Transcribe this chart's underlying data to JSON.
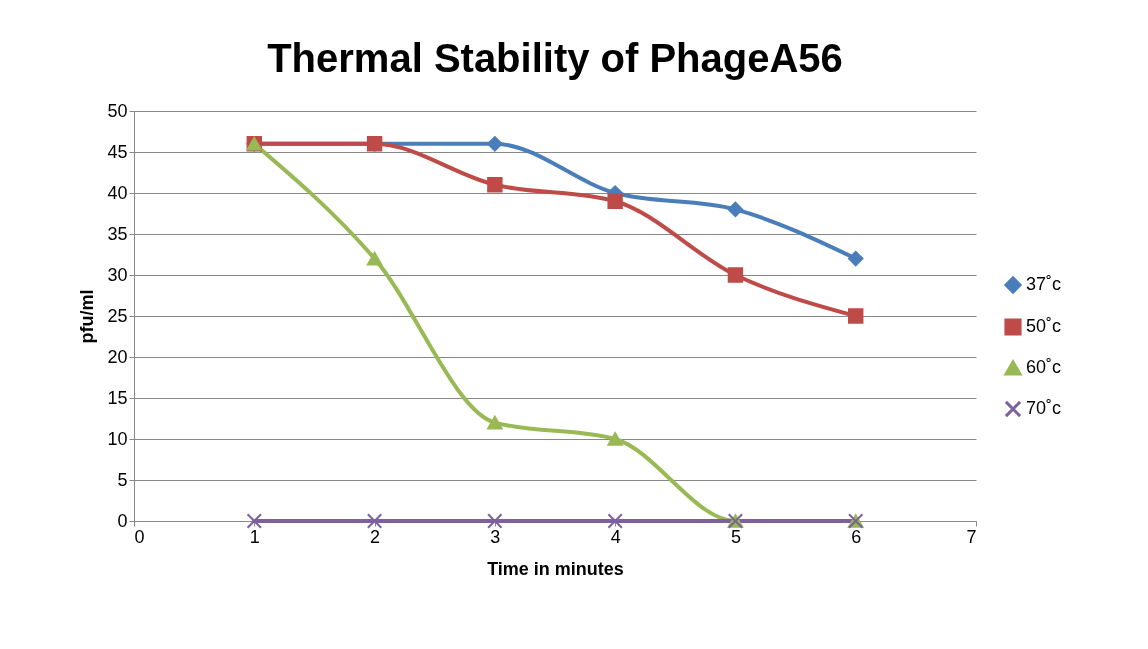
{
  "chart_data": {
    "type": "line",
    "title": "Thermal Stability of PhageA56",
    "xlabel": "Time in minutes",
    "ylabel": "pfu/ml",
    "x": [
      1,
      2,
      3,
      4,
      5,
      6
    ],
    "xlim": [
      0,
      7
    ],
    "xticks": [
      0,
      1,
      2,
      3,
      4,
      5,
      6,
      7
    ],
    "ylim": [
      0,
      50
    ],
    "yticks": [
      0,
      5,
      10,
      15,
      20,
      25,
      30,
      35,
      40,
      45,
      50
    ],
    "grid": "y",
    "legend": "right",
    "line_style": "solid",
    "series": [
      {
        "name": "37˚c",
        "color": "#4a7ebb",
        "marker": "diamond",
        "values": [
          46,
          46,
          46,
          40,
          38,
          32
        ]
      },
      {
        "name": "50˚c",
        "color": "#be4b48",
        "marker": "square",
        "values": [
          46,
          46,
          41,
          39,
          30,
          25
        ]
      },
      {
        "name": "60˚c",
        "color": "#98b954",
        "marker": "triangle",
        "values": [
          46,
          32,
          12,
          10,
          0,
          0
        ]
      },
      {
        "name": "70˚c",
        "color": "#7d60a0",
        "marker": "cross",
        "values": [
          0,
          0,
          0,
          0,
          0,
          0
        ]
      }
    ]
  }
}
